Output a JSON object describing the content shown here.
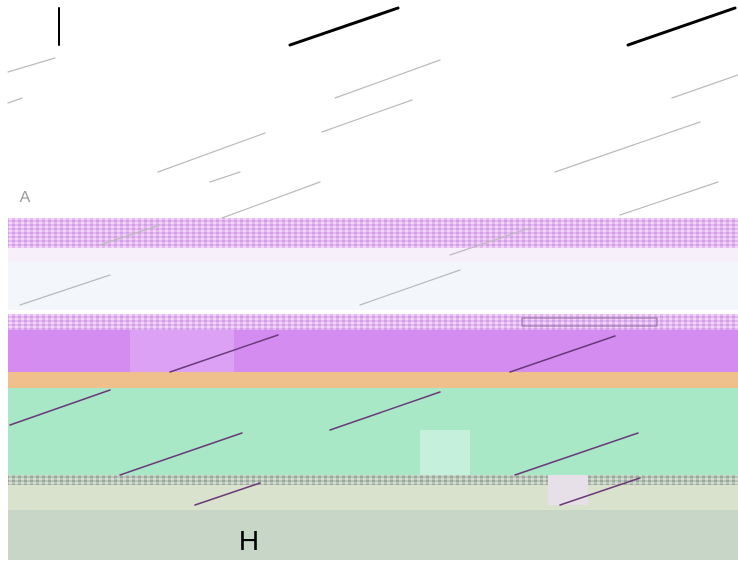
{
  "labels": [
    "A",
    "H"
  ]
}
